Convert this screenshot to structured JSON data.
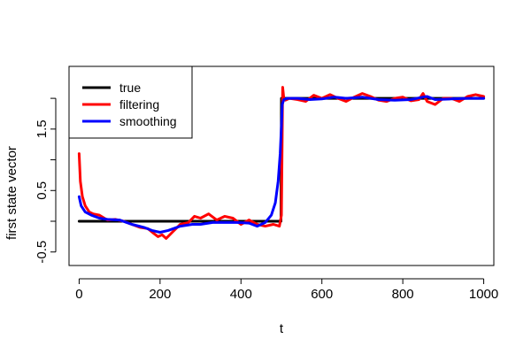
{
  "chart_data": {
    "type": "line",
    "xlabel": "t",
    "ylabel": "first state vector",
    "xlim": [
      -25,
      1025
    ],
    "ylim": [
      -0.72,
      2.52
    ],
    "x_ticks": [
      0,
      200,
      400,
      600,
      800,
      1000
    ],
    "x_tick_labels": [
      "0",
      "200",
      "400",
      "600",
      "800",
      "1000"
    ],
    "y_ticks": [
      -0.5,
      0,
      0.5,
      1,
      1.5,
      2
    ],
    "y_tick_labels": [
      "-0.5",
      "",
      "0.5",
      "",
      "1.5",
      ""
    ],
    "legend": {
      "position": "top-left"
    },
    "series": [
      {
        "name": "true",
        "color": "#000000",
        "x": [
          0,
          499,
          500,
          1000
        ],
        "y": [
          0,
          0,
          2,
          2
        ]
      },
      {
        "name": "filtering",
        "color": "#ff0000",
        "x": [
          0,
          3,
          8,
          15,
          25,
          35,
          50,
          70,
          90,
          110,
          130,
          150,
          170,
          185,
          195,
          205,
          215,
          230,
          250,
          270,
          285,
          300,
          320,
          340,
          360,
          380,
          400,
          420,
          440,
          460,
          480,
          495,
          500,
          503,
          506,
          510,
          520,
          540,
          560,
          580,
          600,
          620,
          640,
          660,
          680,
          700,
          720,
          740,
          760,
          780,
          800,
          820,
          840,
          850,
          860,
          880,
          900,
          920,
          940,
          960,
          980,
          1000
        ],
        "y": [
          1.1,
          0.65,
          0.4,
          0.25,
          0.15,
          0.12,
          0.1,
          0.02,
          0.03,
          0.0,
          -0.05,
          -0.1,
          -0.12,
          -0.2,
          -0.25,
          -0.22,
          -0.28,
          -0.18,
          -0.05,
          -0.02,
          0.08,
          0.05,
          0.12,
          0.02,
          0.08,
          0.05,
          -0.05,
          0.02,
          -0.05,
          -0.08,
          -0.05,
          -0.08,
          0.1,
          2.18,
          2.0,
          1.97,
          2.0,
          1.98,
          1.95,
          2.05,
          2.0,
          2.06,
          2.0,
          1.95,
          2.02,
          2.08,
          2.03,
          1.97,
          1.95,
          2.0,
          2.02,
          1.96,
          1.98,
          2.08,
          1.95,
          1.9,
          2.0,
          2.0,
          1.95,
          2.03,
          2.06,
          2.03
        ]
      },
      {
        "name": "smoothing",
        "color": "#0000ff",
        "x": [
          0,
          5,
          15,
          30,
          50,
          70,
          100,
          130,
          160,
          180,
          200,
          220,
          250,
          280,
          300,
          330,
          360,
          390,
          420,
          440,
          460,
          475,
          485,
          492,
          497,
          500,
          502,
          506,
          515,
          540,
          570,
          600,
          630,
          660,
          700,
          740,
          780,
          820,
          850,
          860,
          880,
          920,
          960,
          1000
        ],
        "y": [
          0.4,
          0.25,
          0.15,
          0.1,
          0.05,
          0.03,
          0.02,
          -0.05,
          -0.1,
          -0.15,
          -0.18,
          -0.15,
          -0.08,
          -0.05,
          -0.05,
          -0.02,
          -0.02,
          -0.02,
          -0.03,
          -0.08,
          -0.02,
          0.1,
          0.3,
          0.65,
          1.1,
          1.55,
          1.9,
          1.98,
          2.0,
          2.0,
          1.98,
          1.99,
          2.02,
          2.0,
          2.02,
          1.98,
          1.97,
          1.98,
          2.02,
          2.03,
          1.98,
          1.99,
          2.0,
          2.0
        ]
      }
    ]
  }
}
